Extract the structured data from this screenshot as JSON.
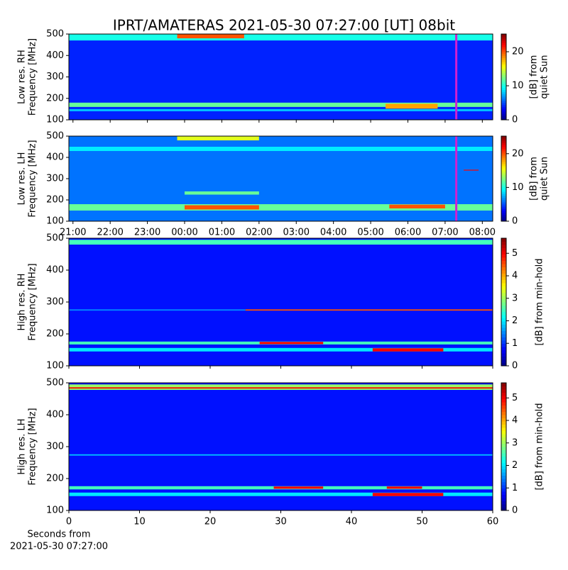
{
  "chart_data": [
    {
      "type": "heatmap",
      "title": "IPRT/AMATERAS 2021-05-30 07:27:00 [UT]   08bit",
      "ylabel": [
        "Low res. RH",
        "Frequency [MHz]"
      ],
      "ylim": [
        100,
        500
      ],
      "yticks": [
        100,
        200,
        300,
        400,
        500
      ],
      "xlim": [
        -0.11,
        11.28
      ],
      "xticks": [
        0,
        1,
        2,
        3,
        4,
        5,
        6,
        7,
        8,
        9,
        10,
        11
      ],
      "clim": [
        0,
        25.2
      ],
      "cticks": [
        0,
        10,
        20
      ],
      "colorbar_label": [
        "[dB] from",
        "quiet Sun"
      ],
      "background": 4,
      "features": [
        {
          "x": [
            -0.11,
            11.28
          ],
          "y": [
            470,
            500
          ],
          "value": 10
        },
        {
          "x": [
            2.8,
            4.6
          ],
          "y": [
            480,
            500
          ],
          "value": 20
        },
        {
          "x": [
            -0.11,
            11.28
          ],
          "y": [
            160,
            180
          ],
          "value": 12
        },
        {
          "x": [
            8.4,
            9.8
          ],
          "y": [
            152,
            175
          ],
          "value": 18
        },
        {
          "x": [
            -0.11,
            11.28
          ],
          "y": [
            140,
            150
          ],
          "value": 8
        }
      ],
      "marker_x": 10.3,
      "marker_color": "#d020d0"
    },
    {
      "type": "heatmap",
      "ylabel": [
        "Low res. LH",
        "Frequency [MHz]"
      ],
      "ylim": [
        100,
        500
      ],
      "yticks": [
        100,
        200,
        300,
        400,
        500
      ],
      "xlim": [
        -0.11,
        11.28
      ],
      "xticks": [
        {
          "value": 0,
          "label": "21:00"
        },
        {
          "value": 1,
          "label": "22:00"
        },
        {
          "value": 2,
          "label": "23:00"
        },
        {
          "value": 3,
          "label": "00:00"
        },
        {
          "value": 4,
          "label": "01:00"
        },
        {
          "value": 5,
          "label": "02:00"
        },
        {
          "value": 6,
          "label": "03:00"
        },
        {
          "value": 7,
          "label": "04:00"
        },
        {
          "value": 8,
          "label": "05:00"
        },
        {
          "value": 9,
          "label": "06:00"
        },
        {
          "value": 10,
          "label": "07:00"
        },
        {
          "value": 11,
          "label": "08:00"
        }
      ],
      "clim": [
        0,
        25.2
      ],
      "cticks": [
        0,
        10,
        20
      ],
      "colorbar_label": [
        "[dB] from",
        "quiet Sun"
      ],
      "background": 6,
      "features": [
        {
          "x": [
            2.8,
            5
          ],
          "y": [
            480,
            500
          ],
          "value": 15
        },
        {
          "x": [
            -0.11,
            11.28
          ],
          "y": [
            430,
            450
          ],
          "value": 9
        },
        {
          "x": [
            3,
            5
          ],
          "y": [
            225,
            240
          ],
          "value": 12
        },
        {
          "x": [
            -0.11,
            11.28
          ],
          "y": [
            150,
            180
          ],
          "value": 12
        },
        {
          "x": [
            3,
            5
          ],
          "y": [
            155,
            175
          ],
          "value": 20
        },
        {
          "x": [
            8.5,
            10
          ],
          "y": [
            160,
            178
          ],
          "value": 20
        },
        {
          "x": [
            10.5,
            10.9
          ],
          "y": [
            338,
            342
          ],
          "value": 22
        }
      ],
      "marker_x": 10.3,
      "marker_color": "#d020d0"
    },
    {
      "type": "heatmap",
      "ylabel": [
        "High res. RH",
        "Frequency [MHz]"
      ],
      "ylim": [
        100,
        500
      ],
      "yticks": [
        100,
        200,
        300,
        400,
        500
      ],
      "xlim": [
        0,
        60
      ],
      "xticks": [
        0,
        10,
        20,
        30,
        40,
        50,
        60
      ],
      "clim": [
        0,
        5.67
      ],
      "cticks": [
        0,
        1,
        2,
        3,
        4,
        5
      ],
      "colorbar_label": [
        "[dB] from min-hold"
      ],
      "background": 0.8,
      "features": [
        {
          "x": [
            0,
            60
          ],
          "y": [
            480,
            495
          ],
          "value": 2.5
        },
        {
          "x": [
            0,
            60
          ],
          "y": [
            167,
            176
          ],
          "value": 2.5
        },
        {
          "x": [
            27,
            36
          ],
          "y": [
            168,
            175
          ],
          "value": 5
        },
        {
          "x": [
            0,
            60
          ],
          "y": [
            145,
            156
          ],
          "value": 2
        },
        {
          "x": [
            43,
            53
          ],
          "y": [
            145,
            155
          ],
          "value": 5
        },
        {
          "x": [
            0,
            25
          ],
          "y": [
            273,
            277
          ],
          "value": 1.5
        },
        {
          "x": [
            25,
            60
          ],
          "y": [
            273,
            277
          ],
          "value": 4.5
        }
      ]
    },
    {
      "type": "heatmap",
      "ylabel": [
        "High res. LH",
        "Frequency [MHz]"
      ],
      "ylim": [
        100,
        500
      ],
      "yticks": [
        100,
        200,
        300,
        400,
        500
      ],
      "xlim": [
        0,
        60
      ],
      "xticks": [
        0,
        10,
        20,
        30,
        40,
        50,
        60
      ],
      "xlabel": [
        "Seconds from",
        "2021-05-30 07:27:00"
      ],
      "clim": [
        0,
        5.67
      ],
      "cticks": [
        0,
        1,
        2,
        3,
        4,
        5
      ],
      "colorbar_label": [
        "[dB] from min-hold"
      ],
      "background": 0.8,
      "features": [
        {
          "x": [
            0,
            60
          ],
          "y": [
            478,
            495
          ],
          "value": 3
        },
        {
          "x": [
            0,
            60
          ],
          "y": [
            482,
            486
          ],
          "value": 5
        },
        {
          "x": [
            0,
            60
          ],
          "y": [
            166,
            176
          ],
          "value": 2.5
        },
        {
          "x": [
            29,
            36
          ],
          "y": [
            168,
            175
          ],
          "value": 5
        },
        {
          "x": [
            45,
            50
          ],
          "y": [
            168,
            175
          ],
          "value": 5
        },
        {
          "x": [
            0,
            60
          ],
          "y": [
            145,
            156
          ],
          "value": 2
        },
        {
          "x": [
            43,
            53
          ],
          "y": [
            145,
            155
          ],
          "value": 5
        },
        {
          "x": [
            0,
            60
          ],
          "y": [
            272,
            276
          ],
          "value": 1.8
        }
      ]
    }
  ]
}
